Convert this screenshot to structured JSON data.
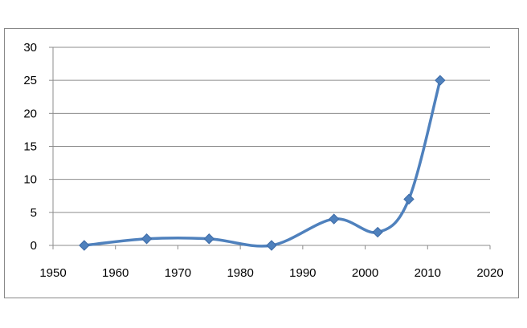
{
  "chart_data": {
    "type": "line",
    "title": "",
    "xlabel": "",
    "ylabel": "",
    "xlim": [
      1950,
      2020
    ],
    "ylim": [
      0,
      30
    ],
    "xticks": [
      1950,
      1960,
      1970,
      1980,
      1990,
      2000,
      2010,
      2020
    ],
    "yticks": [
      0,
      5,
      10,
      15,
      20,
      25,
      30
    ],
    "grid": "horizontal",
    "legend": "none",
    "smooth": true,
    "series": [
      {
        "name": "",
        "color": "#4f81bd",
        "marker": "diamond",
        "x": [
          1955,
          1965,
          1975,
          1985,
          1995,
          2002,
          2007,
          2012
        ],
        "y": [
          0,
          1,
          1,
          0,
          4,
          2,
          7,
          25
        ]
      }
    ]
  }
}
